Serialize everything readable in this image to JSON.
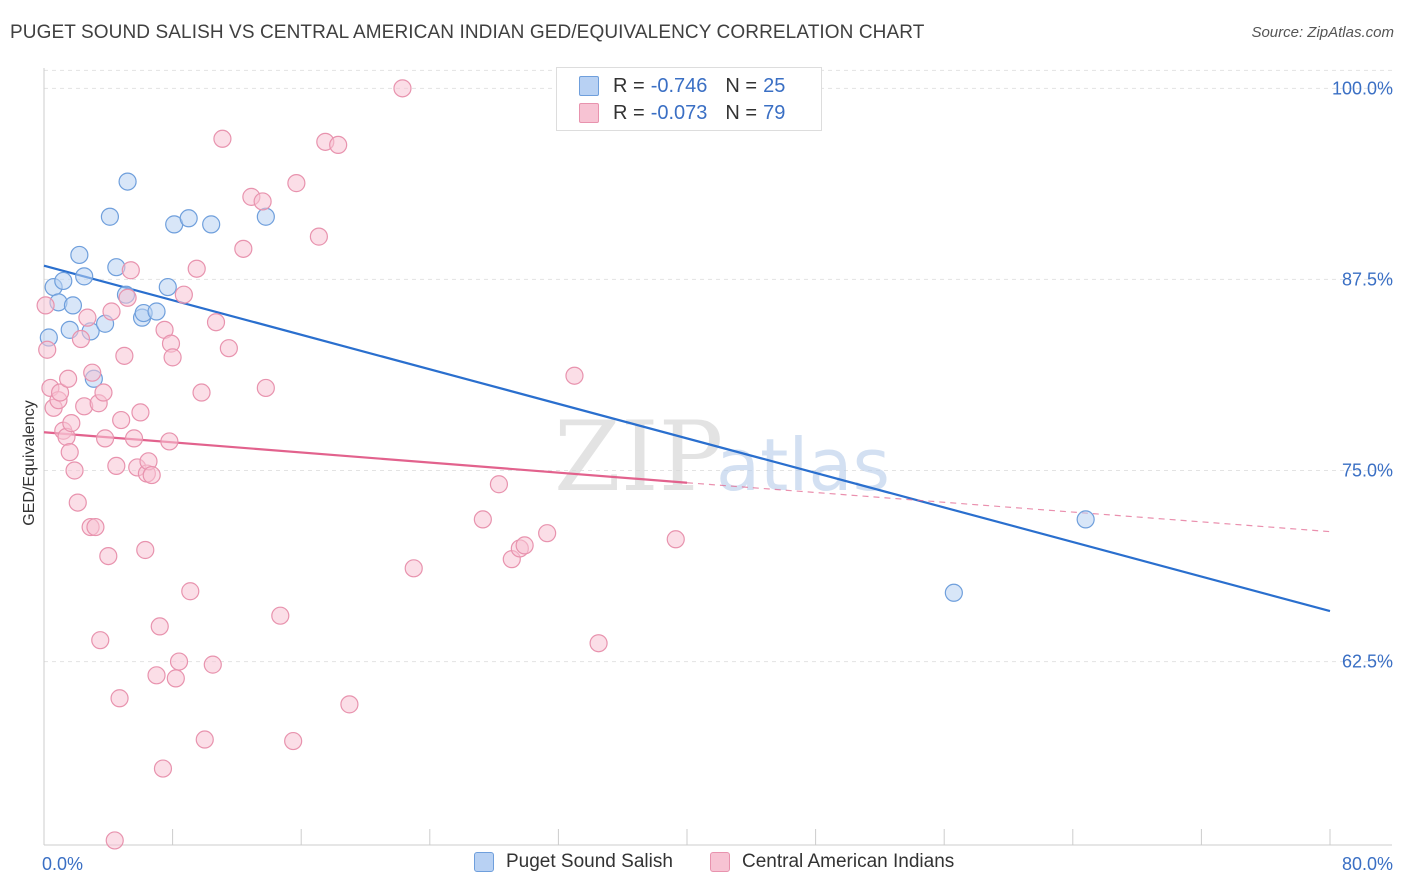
{
  "title": "PUGET SOUND SALISH VS CENTRAL AMERICAN INDIAN GED/EQUIVALENCY CORRELATION CHART",
  "source": "Source: ZipAtlas.com",
  "watermark": {
    "zip": "ZIP",
    "atlas": "atlas"
  },
  "colors": {
    "blue_fill": "#b8d1f3",
    "blue_stroke": "#6f9fdc",
    "blue_line": "#2a6fce",
    "pink_fill": "#f7c3d3",
    "pink_stroke": "#e893ae",
    "pink_line": "#e2628d",
    "axis_label": "#3a6fc4",
    "grid": "#e3e3e3"
  },
  "legend_top": [
    {
      "r_label": "R =",
      "r_value": "-0.746",
      "n_label": "N =",
      "n_value": "25",
      "series": "blue"
    },
    {
      "r_label": "R =",
      "r_value": "-0.073",
      "n_label": "N =",
      "n_value": "79",
      "series": "pink"
    }
  ],
  "legend_bottom": [
    {
      "label": "Puget Sound Salish",
      "series": "blue"
    },
    {
      "label": "Central American Indians",
      "series": "pink"
    }
  ],
  "chart_data": {
    "type": "scatter",
    "ylabel": "GED/Equivalency",
    "xlabel": "",
    "xlim": [
      0,
      80
    ],
    "ylim": [
      50.5,
      101.2
    ],
    "x_tick_labels": [
      {
        "x": 0,
        "label": "0.0%"
      },
      {
        "x": 80,
        "label": "80.0%"
      }
    ],
    "x_minor_ticks": [
      0,
      8,
      16,
      24,
      32,
      40,
      48,
      56,
      64,
      72,
      80
    ],
    "y_ticks": [
      {
        "y": 100,
        "label": "100.0%"
      },
      {
        "y": 87.5,
        "label": "87.5%"
      },
      {
        "y": 75,
        "label": "75.0%"
      },
      {
        "y": 62.5,
        "label": "62.5%"
      }
    ],
    "grid": true,
    "series": [
      {
        "name": "Puget Sound Salish",
        "color": "blue",
        "points": [
          [
            0.3,
            83.7
          ],
          [
            0.6,
            87.0
          ],
          [
            0.9,
            86.0
          ],
          [
            1.2,
            87.4
          ],
          [
            1.6,
            84.2
          ],
          [
            1.8,
            85.8
          ],
          [
            2.2,
            89.1
          ],
          [
            2.5,
            87.7
          ],
          [
            2.9,
            84.1
          ],
          [
            3.1,
            81.0
          ],
          [
            3.8,
            84.6
          ],
          [
            4.1,
            91.6
          ],
          [
            4.5,
            88.3
          ],
          [
            5.1,
            86.5
          ],
          [
            5.2,
            93.9
          ],
          [
            6.1,
            85.0
          ],
          [
            6.2,
            85.3
          ],
          [
            7.0,
            85.4
          ],
          [
            7.7,
            87.0
          ],
          [
            8.1,
            91.1
          ],
          [
            9.0,
            91.5
          ],
          [
            10.4,
            91.1
          ],
          [
            13.8,
            91.6
          ],
          [
            56.6,
            67.0
          ],
          [
            64.8,
            71.8
          ]
        ],
        "trend": {
          "x": [
            0,
            80
          ],
          "y": [
            88.4,
            65.8
          ]
        }
      },
      {
        "name": "Central American Indians",
        "color": "pink",
        "points": [
          [
            0.1,
            85.8
          ],
          [
            0.2,
            82.9
          ],
          [
            0.4,
            80.4
          ],
          [
            0.6,
            79.1
          ],
          [
            0.9,
            79.6
          ],
          [
            1.0,
            80.1
          ],
          [
            1.2,
            77.6
          ],
          [
            1.4,
            77.2
          ],
          [
            1.5,
            81.0
          ],
          [
            1.6,
            76.2
          ],
          [
            1.7,
            78.1
          ],
          [
            1.9,
            75.0
          ],
          [
            2.1,
            72.9
          ],
          [
            2.3,
            83.6
          ],
          [
            2.5,
            79.2
          ],
          [
            2.7,
            85.0
          ],
          [
            2.9,
            71.3
          ],
          [
            3.0,
            81.4
          ],
          [
            3.2,
            71.3
          ],
          [
            3.4,
            79.4
          ],
          [
            3.5,
            63.9
          ],
          [
            3.7,
            80.1
          ],
          [
            3.8,
            77.1
          ],
          [
            4.0,
            69.4
          ],
          [
            4.2,
            85.4
          ],
          [
            4.5,
            75.3
          ],
          [
            4.7,
            60.1
          ],
          [
            4.8,
            78.3
          ],
          [
            5.0,
            82.5
          ],
          [
            5.2,
            86.3
          ],
          [
            5.4,
            88.1
          ],
          [
            5.6,
            77.1
          ],
          [
            5.8,
            75.2
          ],
          [
            6.0,
            78.8
          ],
          [
            6.3,
            69.8
          ],
          [
            6.4,
            74.8
          ],
          [
            6.5,
            75.6
          ],
          [
            6.7,
            74.7
          ],
          [
            7.0,
            61.6
          ],
          [
            7.2,
            64.8
          ],
          [
            7.4,
            55.5
          ],
          [
            7.5,
            84.2
          ],
          [
            7.8,
            76.9
          ],
          [
            7.9,
            83.3
          ],
          [
            8.0,
            82.4
          ],
          [
            8.2,
            61.4
          ],
          [
            8.4,
            62.5
          ],
          [
            8.7,
            86.5
          ],
          [
            9.1,
            67.1
          ],
          [
            9.5,
            88.2
          ],
          [
            9.8,
            80.1
          ],
          [
            10.0,
            57.4
          ],
          [
            10.5,
            62.3
          ],
          [
            10.7,
            84.7
          ],
          [
            11.1,
            96.7
          ],
          [
            11.5,
            83.0
          ],
          [
            12.4,
            89.5
          ],
          [
            12.9,
            92.9
          ],
          [
            13.6,
            92.6
          ],
          [
            13.8,
            80.4
          ],
          [
            14.7,
            65.5
          ],
          [
            15.5,
            57.3
          ],
          [
            15.7,
            93.8
          ],
          [
            17.1,
            90.3
          ],
          [
            17.5,
            96.5
          ],
          [
            18.3,
            96.3
          ],
          [
            19.0,
            59.7
          ],
          [
            22.3,
            100.0
          ],
          [
            23.0,
            68.6
          ],
          [
            27.3,
            71.8
          ],
          [
            28.3,
            74.1
          ],
          [
            29.1,
            69.2
          ],
          [
            29.6,
            69.9
          ],
          [
            29.9,
            70.1
          ],
          [
            31.3,
            70.9
          ],
          [
            33.0,
            81.2
          ],
          [
            34.5,
            63.7
          ],
          [
            39.3,
            70.5
          ],
          [
            4.4,
            50.8
          ]
        ],
        "trend": {
          "x": [
            0,
            40
          ],
          "y": [
            77.5,
            74.2
          ]
        },
        "trend_extension": {
          "x": [
            40,
            80
          ],
          "y": [
            74.2,
            71.0
          ]
        }
      }
    ]
  }
}
